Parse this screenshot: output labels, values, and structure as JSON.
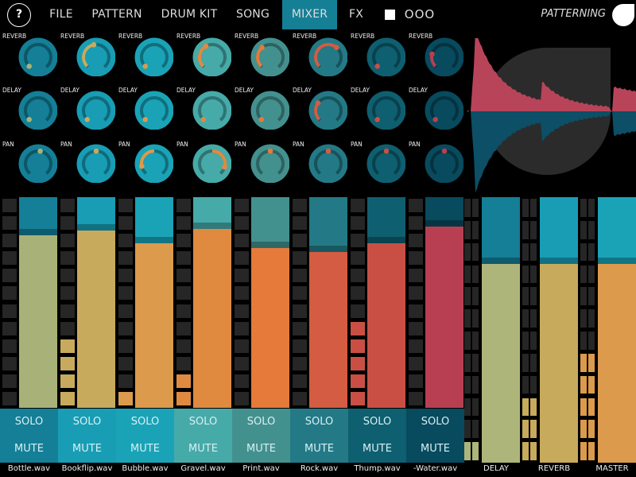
{
  "header": {
    "help_label": "?",
    "tabs": [
      {
        "label": "FILE",
        "active": false
      },
      {
        "label": "PATTERN",
        "active": false
      },
      {
        "label": "DRUM KIT",
        "active": false
      },
      {
        "label": "SONG",
        "active": false
      },
      {
        "label": "MIXER",
        "active": true
      },
      {
        "label": "FX",
        "active": false
      }
    ],
    "stop_icon": "stop-square-icon",
    "more_label": "OOO",
    "app_title": "PATTERNING",
    "logo_icon": "leaf-logo-icon",
    "active_color": "#157f95"
  },
  "knob_labels": {
    "reverb": "REVERB",
    "delay": "DELAY",
    "pan": "PAN"
  },
  "channels": [
    {
      "name": "Bottle.wav",
      "color": "#147f97",
      "accent": "#a8b278",
      "reverb": 0.0,
      "delay": 0.0,
      "pan": 0.07,
      "level": 0.82,
      "meter": 0,
      "solo": "SOLO",
      "mute": "MUTE"
    },
    {
      "name": "Bookflip.wav",
      "color": "#189db5",
      "accent": "#c8aa5c",
      "reverb": 0.46,
      "delay": 0.0,
      "pan": 0.0,
      "level": 0.84,
      "meter": 4,
      "solo": "SOLO",
      "mute": "MUTE"
    },
    {
      "name": "Bubble.wav",
      "color": "#1aa3b7",
      "accent": "#dc9a4c",
      "reverb": 0.0,
      "delay": 0.0,
      "pan": -0.75,
      "level": 0.78,
      "meter": 1,
      "solo": "SOLO",
      "mute": "MUTE"
    },
    {
      "name": "Gravel.wav",
      "color": "#46aaa8",
      "accent": "#e08a40",
      "reverb": 0.39,
      "delay": 0.0,
      "pan": 0.78,
      "level": 0.85,
      "meter": 2,
      "solo": "SOLO",
      "mute": "MUTE"
    },
    {
      "name": "Print.wav",
      "color": "#43918f",
      "accent": "#e57a3a",
      "reverb": 0.35,
      "delay": 0.0,
      "pan": 0.0,
      "level": 0.76,
      "meter": 0,
      "solo": "SOLO",
      "mute": "MUTE"
    },
    {
      "name": "Rock.wav",
      "color": "#237a86",
      "accent": "#d45c42",
      "reverb": 0.65,
      "delay": 0.3,
      "pan": 0.0,
      "level": 0.74,
      "meter": 0,
      "solo": "SOLO",
      "mute": "MUTE"
    },
    {
      "name": "Thump.wav",
      "color": "#0e5f70",
      "accent": "#c94f45",
      "reverb": 0.0,
      "delay": 0.0,
      "pan": 0.0,
      "level": 0.78,
      "meter": 5,
      "solo": "SOLO",
      "mute": "MUTE"
    },
    {
      "name": "-Water.wav",
      "color": "#084a5e",
      "accent": "#b83f52",
      "reverb": 0.22,
      "delay": 0.0,
      "pan": 0.0,
      "level": 0.86,
      "meter": 0,
      "solo": "SOLO",
      "mute": "MUTE"
    }
  ],
  "buses": [
    {
      "name": "DELAY",
      "color": "#147f97",
      "accent": "#adb57a",
      "level": 0.75,
      "meter": 1
    },
    {
      "name": "REVERB",
      "color": "#189db5",
      "accent": "#c8aa5c",
      "level": 0.75,
      "meter": 3
    },
    {
      "name": "MASTER",
      "color": "#1aa3b7",
      "accent": "#dc9a4c",
      "level": 0.75,
      "meter": 5
    }
  ],
  "waveform": {
    "top_color": "#b8445a",
    "bottom_color": "#0c4f66"
  }
}
